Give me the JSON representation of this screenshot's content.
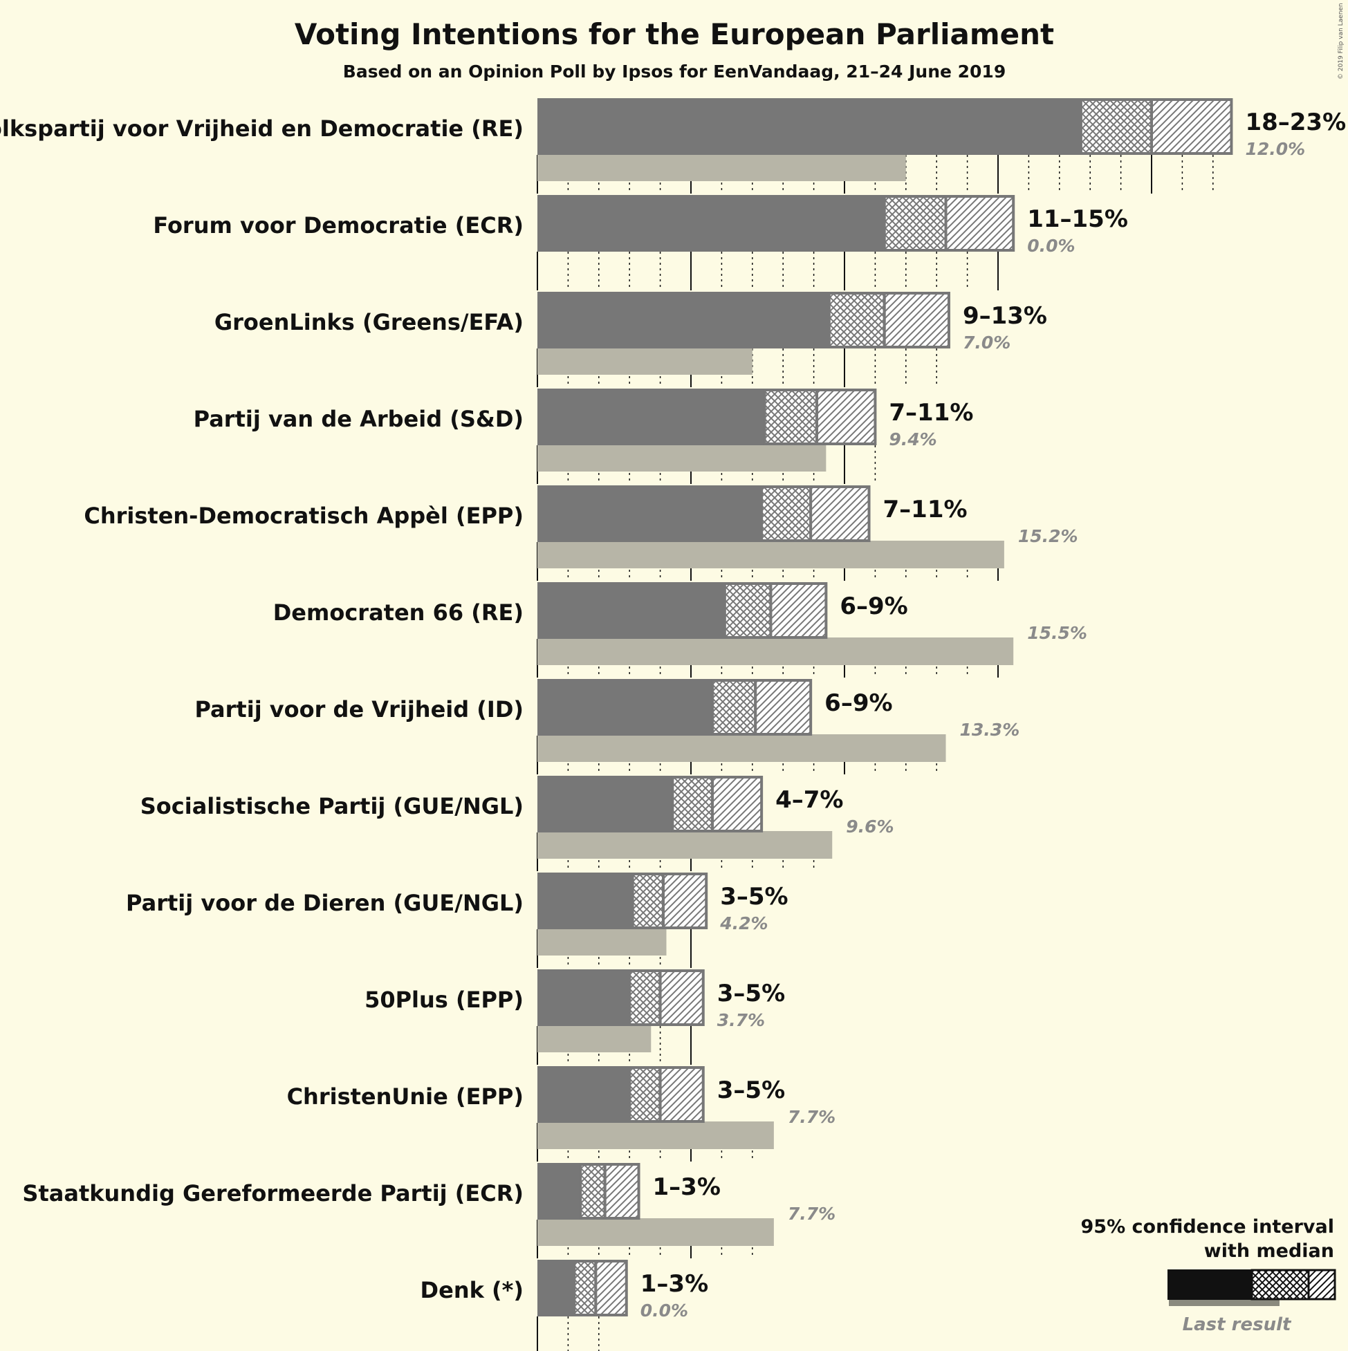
{
  "chart_data": {
    "type": "bar",
    "orientation": "horizontal",
    "title": "Voting Intentions for the European Parliament",
    "subtitle": "Based on an Opinion Poll by Ipsos for EenVandaag, 21–24 June 2019",
    "copyright": "© 2019 Filip van Laenen",
    "xlabel": "",
    "ylabel": "",
    "xlim": [
      0,
      23.5
    ],
    "grid": true,
    "legend": {
      "placement": "bottom-right",
      "ci_label_line1": "95% confidence interval",
      "ci_label_line2": "with median",
      "last_result_label": "Last result"
    },
    "series": [
      {
        "name": "95% confidence interval"
      },
      {
        "name": "Last result"
      }
    ],
    "parties": [
      {
        "name": "Volkspartij voor Vrijheid en Democratie (RE)",
        "low": 17.7,
        "median": 20.0,
        "high": 22.6,
        "range_label": "18–23%",
        "last": 12.0,
        "last_label": "12.0%"
      },
      {
        "name": "Forum voor Democratie (ECR)",
        "low": 11.3,
        "median": 13.3,
        "high": 15.5,
        "range_label": "11–15%",
        "last": 0.0,
        "last_label": "0.0%"
      },
      {
        "name": "GroenLinks (Greens/EFA)",
        "low": 9.5,
        "median": 11.3,
        "high": 13.4,
        "range_label": "9–13%",
        "last": 7.0,
        "last_label": "7.0%"
      },
      {
        "name": "Partij van de Arbeid (S&D)",
        "low": 7.4,
        "median": 9.1,
        "high": 11.0,
        "range_label": "7–11%",
        "last": 9.4,
        "last_label": "9.4%"
      },
      {
        "name": "Christen-Democratisch Appèl (EPP)",
        "low": 7.3,
        "median": 8.9,
        "high": 10.8,
        "range_label": "7–11%",
        "last": 15.2,
        "last_label": "15.2%"
      },
      {
        "name": "Democraten 66 (RE)",
        "low": 6.1,
        "median": 7.6,
        "high": 9.4,
        "range_label": "6–9%",
        "last": 15.5,
        "last_label": "15.5%"
      },
      {
        "name": "Partij voor de Vrijheid (ID)",
        "low": 5.7,
        "median": 7.1,
        "high": 8.9,
        "range_label": "6–9%",
        "last": 13.3,
        "last_label": "13.3%"
      },
      {
        "name": "Socialistische Partij (GUE/NGL)",
        "low": 4.4,
        "median": 5.7,
        "high": 7.3,
        "range_label": "4–7%",
        "last": 9.6,
        "last_label": "9.6%"
      },
      {
        "name": "Partij voor de Dieren (GUE/NGL)",
        "low": 3.1,
        "median": 4.1,
        "high": 5.5,
        "range_label": "3–5%",
        "last": 4.2,
        "last_label": "4.2%"
      },
      {
        "name": "50Plus (EPP)",
        "low": 3.0,
        "median": 4.0,
        "high": 5.4,
        "range_label": "3–5%",
        "last": 3.7,
        "last_label": "3.7%"
      },
      {
        "name": "ChristenUnie (EPP)",
        "low": 3.0,
        "median": 4.0,
        "high": 5.4,
        "range_label": "3–5%",
        "last": 7.7,
        "last_label": "7.7%"
      },
      {
        "name": "Staatkundig Gereformeerde Partij (ECR)",
        "low": 1.4,
        "median": 2.2,
        "high": 3.3,
        "range_label": "1–3%",
        "last": 7.7,
        "last_label": "7.7%"
      },
      {
        "name": "Denk (*)",
        "low": 1.2,
        "median": 1.9,
        "high": 2.9,
        "range_label": "1–3%",
        "last": 0.0,
        "last_label": "0.0%"
      }
    ],
    "colors": {
      "background": "#fdfbe4",
      "bar": "#777777",
      "bar_outline": "#777777",
      "last_result": "#b7b5a7",
      "legend_bar": "#111111",
      "legend_last": "#8a8a7e",
      "text": "#111111",
      "last_text": "#8a8a8a"
    }
  }
}
